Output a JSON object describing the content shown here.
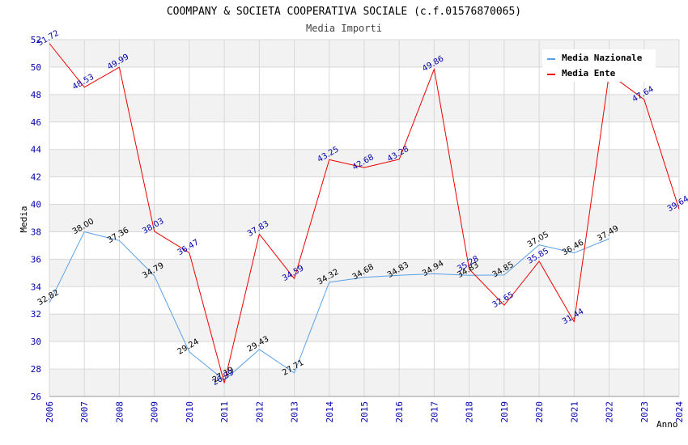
{
  "chart_data": {
    "type": "line",
    "title": "COOMPANY & SOCIETA COOPERATIVA SOCIALE (c.f.01576870065)",
    "subtitle": "Media Importi",
    "xlabel": "Anno",
    "ylabel": "Media",
    "x": [
      "2006",
      "2007",
      "2008",
      "2009",
      "2010",
      "2011",
      "2012",
      "2013",
      "2014",
      "2015",
      "2016",
      "2017",
      "2018",
      "2019",
      "2020",
      "2021",
      "2022",
      "2023",
      "2024"
    ],
    "yticks": [
      "26",
      "28",
      "30",
      "32",
      "34",
      "36",
      "38",
      "40",
      "42",
      "44",
      "46",
      "48",
      "50",
      "52"
    ],
    "ylim": [
      26,
      52
    ],
    "grid": true,
    "legend_position": "top-right",
    "series": [
      {
        "name": "Media Nazionale",
        "color": "#5aa0e6",
        "label_color": "#000000",
        "values": [
          32.82,
          38.0,
          37.36,
          34.79,
          29.24,
          27.19,
          29.43,
          27.71,
          34.32,
          34.68,
          34.83,
          34.94,
          34.83,
          34.85,
          37.05,
          36.46,
          37.49,
          null,
          null
        ],
        "labels": [
          "32.82",
          "38.00",
          "37.36",
          "34.79",
          "29.24",
          "27.19",
          "29.43",
          "27.71",
          "34.32",
          "34.68",
          "34.83",
          "34.94",
          "34.83",
          "34.85",
          "37.05",
          "36.46",
          "37.49",
          "",
          ""
        ]
      },
      {
        "name": "Media Ente",
        "color": "#ee0000",
        "label_color": "#0000aa",
        "values": [
          51.72,
          48.53,
          49.99,
          38.03,
          36.47,
          26.99,
          37.83,
          34.59,
          43.25,
          42.68,
          43.28,
          49.86,
          35.28,
          32.65,
          35.85,
          31.44,
          49.51,
          47.64,
          39.64
        ],
        "labels": [
          "51.72",
          "48.53",
          "49.99",
          "38.03",
          "36.47",
          "26.99",
          "37.83",
          "34.59",
          "43.25",
          "42.68",
          "43.28",
          "49.86",
          "35.28",
          "32.65",
          "35.85",
          "31.44",
          "",
          "47.64",
          "39.64"
        ]
      }
    ]
  }
}
